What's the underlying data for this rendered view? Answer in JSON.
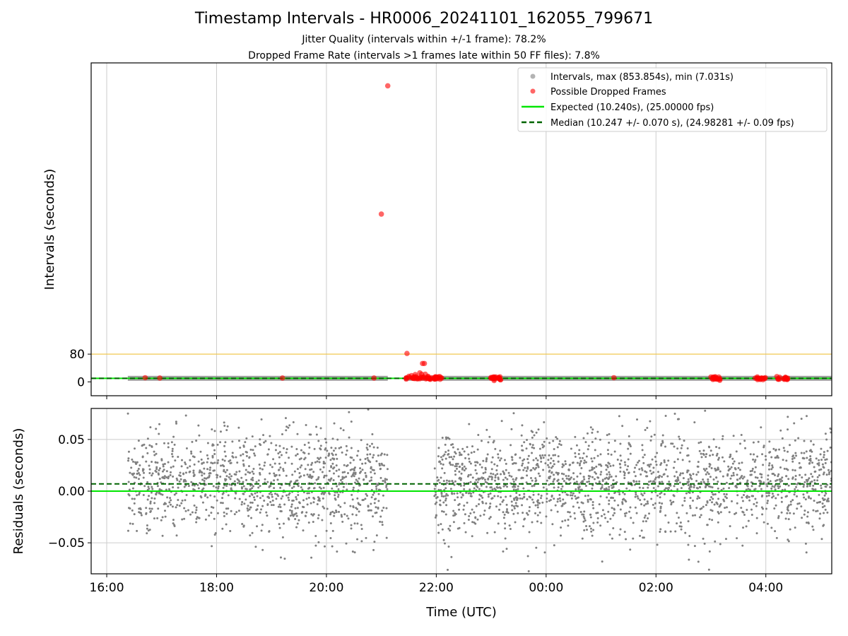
{
  "title": "Timestamp Intervals - HR0006_20241101_162055_799671",
  "subtitle_1": "Jitter Quality (intervals within +/-1 frame): 78.2%",
  "subtitle_2": "Dropped Frame Rate (intervals >1 frames late within 50 FF files): 7.8%",
  "colors": {
    "intervals": "#808080",
    "dropped": "#ff0000",
    "expected": "#00e600",
    "median": "#006400",
    "threshold": "#f0c850",
    "grid": "#cccccc"
  },
  "chart_data": [
    {
      "type": "scatter",
      "panel": "intervals",
      "ylabel": "Intervals (seconds)",
      "xlim": [
        "15:43",
        "05:12"
      ],
      "ylim": [
        -40,
        920
      ],
      "yticks": [
        0,
        80
      ],
      "xticks": [
        "16:00",
        "18:00",
        "20:00",
        "22:00",
        "00:00",
        "02:00",
        "04:00"
      ],
      "grid": "x-only",
      "legend_position": "top-right",
      "legend": [
        "Intervals, max (853.854s), min (7.031s)",
        "Possible Dropped Frames",
        "Expected (10.240s), (25.00000 fps)",
        "Median (10.247 +/- 0.070 s), (24.98281 +/- 0.09 fps)"
      ],
      "expected_interval": 10.24,
      "median_interval": 10.247,
      "threshold_line": 80,
      "intervals_time_range": [
        [
          "16:23",
          "21:07"
        ],
        [
          "21:25",
          "05:12"
        ]
      ],
      "intervals_max": 853.854,
      "intervals_min": 7.031,
      "dropped_frames": [
        {
          "t": "16:42",
          "y": 12
        },
        {
          "t": "16:58",
          "y": 11
        },
        {
          "t": "19:12",
          "y": 11
        },
        {
          "t": "20:52",
          "y": 11
        },
        {
          "t": "21:07",
          "y": 853.854
        },
        {
          "t": "21:00",
          "y": 484
        },
        {
          "t": "21:28",
          "y": 82
        },
        {
          "t": "21:42",
          "y": 26
        },
        {
          "t": "21:45",
          "y": 53
        },
        {
          "t": "21:47",
          "y": 53
        },
        {
          "t": "21:48",
          "y": 22
        },
        {
          "t": "21:44",
          "y": 22
        },
        {
          "t": "21:37",
          "y": 21
        },
        {
          "t": "21:33",
          "y": 18
        },
        {
          "t": "21:30",
          "y": 16
        },
        {
          "t": "21:51",
          "y": 16
        },
        {
          "t": "21:55",
          "y": 12
        },
        {
          "t": "23:08",
          "y": 11
        },
        {
          "t": "01:14",
          "y": 12
        },
        {
          "t": "03:00",
          "y": 14
        },
        {
          "t": "03:04",
          "y": 11
        },
        {
          "t": "03:55",
          "y": 11
        },
        {
          "t": "04:22",
          "y": 11
        }
      ],
      "dropped_clusters": [
        {
          "start": "21:27",
          "end": "22:06",
          "y": 12
        },
        {
          "start": "22:58",
          "end": "23:13",
          "y": 10
        },
        {
          "start": "02:58",
          "end": "03:10",
          "y": 10
        },
        {
          "start": "03:48",
          "end": "04:00",
          "y": 10
        },
        {
          "start": "04:12",
          "end": "04:24",
          "y": 10
        }
      ]
    },
    {
      "type": "scatter",
      "panel": "residuals",
      "xlabel": "Time (UTC)",
      "ylabel": "Residuals (seconds)",
      "xlim": [
        "15:43",
        "05:12"
      ],
      "ylim": [
        -0.08,
        0.08
      ],
      "yticks": [
        "0.05",
        "0.00",
        "−0.05"
      ],
      "xticks": [
        "16:00",
        "18:00",
        "20:00",
        "22:00",
        "00:00",
        "02:00",
        "04:00"
      ],
      "grid": "both",
      "expected_residual": 0.0,
      "median_residual": 0.007,
      "residual_time_range": [
        [
          "16:23",
          "21:07"
        ],
        [
          "21:58",
          "05:12"
        ]
      ],
      "residual_center": 0.007,
      "residual_spread_sd": 0.025
    }
  ]
}
